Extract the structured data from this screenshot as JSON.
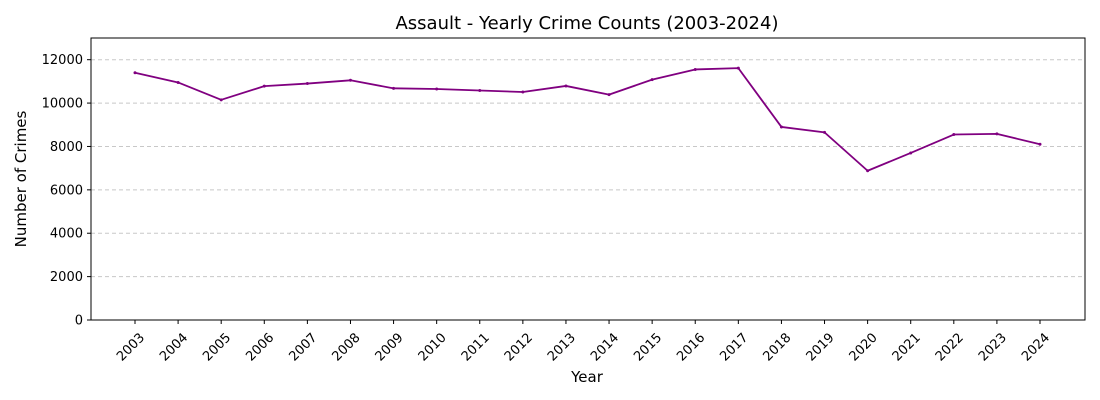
{
  "chart_data": {
    "type": "line",
    "title": "Assault - Yearly Crime Counts (2003-2024)",
    "xlabel": "Year",
    "ylabel": "Number of Crimes",
    "categories": [
      "2003",
      "2004",
      "2005",
      "2006",
      "2007",
      "2008",
      "2009",
      "2010",
      "2011",
      "2012",
      "2013",
      "2014",
      "2015",
      "2016",
      "2017",
      "2018",
      "2019",
      "2020",
      "2021",
      "2022",
      "2023",
      "2024"
    ],
    "series": [
      {
        "values": [
          11400,
          10950,
          10150,
          10780,
          10900,
          11050,
          10680,
          10650,
          10580,
          10510,
          10790,
          10390,
          11080,
          11550,
          11610,
          8900,
          8650,
          6880,
          7700,
          8550,
          8580,
          8100
        ]
      }
    ],
    "ylim": [
      0,
      13000
    ],
    "yticks": [
      0,
      2000,
      4000,
      6000,
      8000,
      10000,
      12000
    ],
    "grid": "y-dashed",
    "line_color": "#800080",
    "x_tick_rotation": 45
  }
}
